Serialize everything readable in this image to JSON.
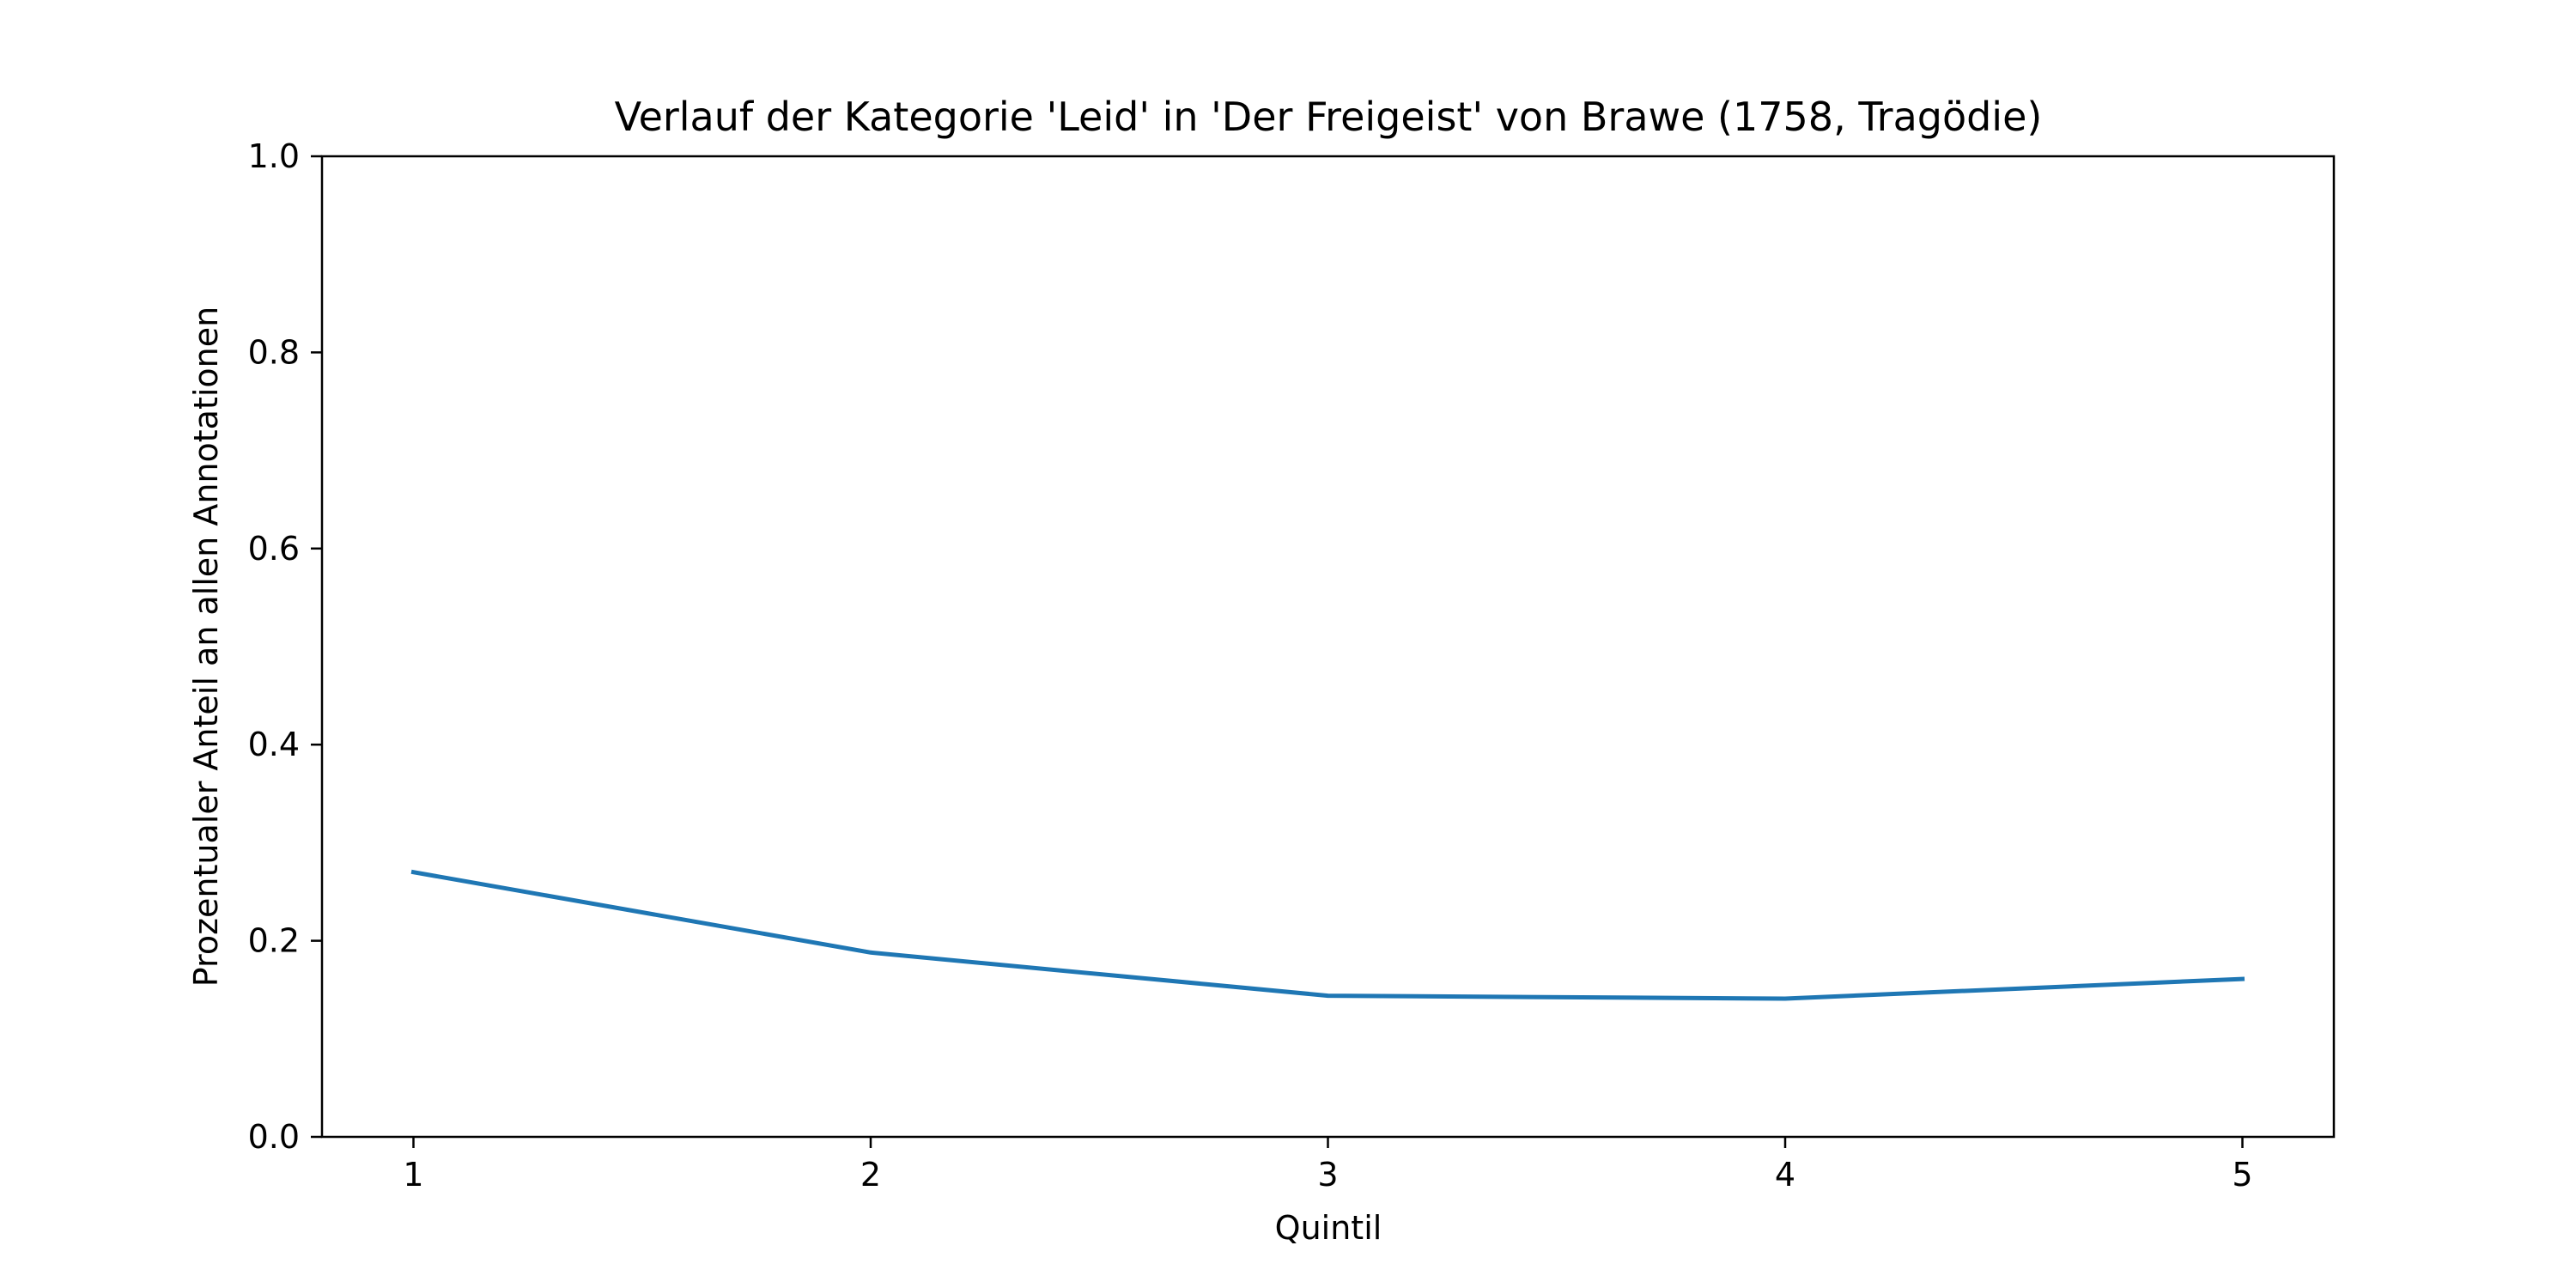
{
  "chart_data": {
    "type": "line",
    "title": "Verlauf der Kategorie 'Leid' in 'Der Freigeist' von Brawe (1758, Tragödie)",
    "xlabel": "Quintil",
    "ylabel": "Prozentualer Anteil an allen Annotationen",
    "x": [
      1,
      2,
      3,
      4,
      5
    ],
    "x_tick_labels": [
      "1",
      "2",
      "3",
      "4",
      "5"
    ],
    "y_ticks": [
      0.0,
      0.2,
      0.4,
      0.6,
      0.8,
      1.0
    ],
    "y_tick_labels": [
      "0.0",
      "0.2",
      "0.4",
      "0.6",
      "0.8",
      "1.0"
    ],
    "xlim": [
      0.8,
      5.2
    ],
    "ylim": [
      0.0,
      1.0
    ],
    "grid": false,
    "series": [
      {
        "values": [
          0.27,
          0.188,
          0.144,
          0.141,
          0.161
        ],
        "color": "#1f77b4"
      }
    ]
  }
}
